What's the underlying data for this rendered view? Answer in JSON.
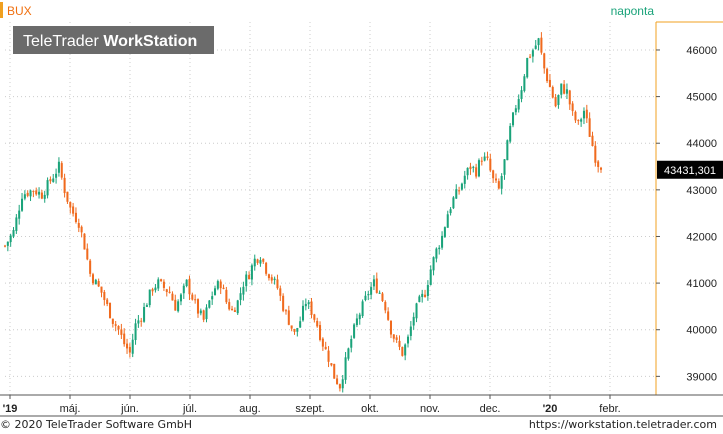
{
  "chart_data": {
    "type": "candlestick",
    "symbol": "BUX",
    "interval": "naponta",
    "watermark": "TeleTrader WorkStation",
    "watermark_parts": [
      "TeleTrader ",
      "WorkStation"
    ],
    "last_value": "43431,301",
    "ylim": [
      38600,
      46600
    ],
    "y_ticks": [
      39000,
      40000,
      41000,
      42000,
      43000,
      44000,
      45000,
      46000
    ],
    "x_ticks": [
      {
        "label": "'19",
        "bold": true
      },
      {
        "label": "máj.",
        "bold": false
      },
      {
        "label": "jún.",
        "bold": false
      },
      {
        "label": "júl.",
        "bold": false
      },
      {
        "label": "aug.",
        "bold": false
      },
      {
        "label": "szept.",
        "bold": false
      },
      {
        "label": "okt.",
        "bold": false
      },
      {
        "label": "nov.",
        "bold": false
      },
      {
        "label": "dec.",
        "bold": false
      },
      {
        "label": "'20",
        "bold": true
      },
      {
        "label": "febr.",
        "bold": false
      }
    ],
    "close_path": [
      [
        0,
        41800
      ],
      [
        3,
        42100
      ],
      [
        6,
        42900
      ],
      [
        10,
        43000
      ],
      [
        13,
        42900
      ],
      [
        16,
        43200
      ],
      [
        19,
        43500
      ],
      [
        21,
        43000
      ],
      [
        23,
        42600
      ],
      [
        26,
        42300
      ],
      [
        28,
        41800
      ],
      [
        30,
        41200
      ],
      [
        32,
        41000
      ],
      [
        34,
        40800
      ],
      [
        36,
        40500
      ],
      [
        38,
        40200
      ],
      [
        40,
        40000
      ],
      [
        42,
        39700
      ],
      [
        44,
        39500
      ],
      [
        46,
        40100
      ],
      [
        48,
        40300
      ],
      [
        50,
        40600
      ],
      [
        52,
        40900
      ],
      [
        54,
        41000
      ],
      [
        56,
        40900
      ],
      [
        58,
        40800
      ],
      [
        60,
        40500
      ],
      [
        62,
        40700
      ],
      [
        64,
        41000
      ],
      [
        66,
        40700
      ],
      [
        68,
        40400
      ],
      [
        70,
        40200
      ],
      [
        72,
        40600
      ],
      [
        74,
        40900
      ],
      [
        76,
        41000
      ],
      [
        78,
        40600
      ],
      [
        80,
        40400
      ],
      [
        82,
        40600
      ],
      [
        84,
        41000
      ],
      [
        86,
        41200
      ],
      [
        88,
        41500
      ],
      [
        90,
        41600
      ],
      [
        92,
        41300
      ],
      [
        94,
        41100
      ],
      [
        96,
        40900
      ],
      [
        98,
        40500
      ],
      [
        100,
        40200
      ],
      [
        102,
        39900
      ],
      [
        104,
        40200
      ],
      [
        106,
        40600
      ],
      [
        108,
        40400
      ],
      [
        110,
        40100
      ],
      [
        112,
        39700
      ],
      [
        114,
        39400
      ],
      [
        116,
        39000
      ],
      [
        118,
        38800
      ],
      [
        120,
        39300
      ],
      [
        122,
        39800
      ],
      [
        124,
        40200
      ],
      [
        126,
        40500
      ],
      [
        128,
        40800
      ],
      [
        130,
        41000
      ],
      [
        132,
        40800
      ],
      [
        134,
        40500
      ],
      [
        136,
        40000
      ],
      [
        138,
        39700
      ],
      [
        140,
        39500
      ],
      [
        142,
        39800
      ],
      [
        144,
        40300
      ],
      [
        146,
        40600
      ],
      [
        148,
        40800
      ],
      [
        150,
        41300
      ],
      [
        152,
        41700
      ],
      [
        154,
        42000
      ],
      [
        156,
        42500
      ],
      [
        158,
        42800
      ],
      [
        160,
        43000
      ],
      [
        162,
        43300
      ],
      [
        164,
        43500
      ],
      [
        166,
        43400
      ],
      [
        168,
        43700
      ],
      [
        170,
        43600
      ],
      [
        172,
        43200
      ],
      [
        174,
        43000
      ],
      [
        176,
        43600
      ],
      [
        178,
        44300
      ],
      [
        180,
        44800
      ],
      [
        182,
        45200
      ],
      [
        184,
        45800
      ],
      [
        186,
        46000
      ],
      [
        188,
        46200
      ],
      [
        190,
        45600
      ],
      [
        192,
        45200
      ],
      [
        194,
        44800
      ],
      [
        196,
        45200
      ],
      [
        198,
        45100
      ],
      [
        200,
        44600
      ],
      [
        202,
        44400
      ],
      [
        204,
        44700
      ],
      [
        206,
        44200
      ],
      [
        208,
        43700
      ],
      [
        210,
        43431
      ]
    ]
  },
  "footer": {
    "copyright": "© 2020 TeleTrader Software GmbH",
    "url": "https://workstation.teletrader.com"
  },
  "colors": {
    "up": "#1aa37a",
    "down": "#f06a1e",
    "axis_accent": "#f0a020",
    "grid": "#cccccc",
    "symbol": "#f07010",
    "interval": "#1aa37a",
    "watermark_bg": "#6b6b6b"
  }
}
